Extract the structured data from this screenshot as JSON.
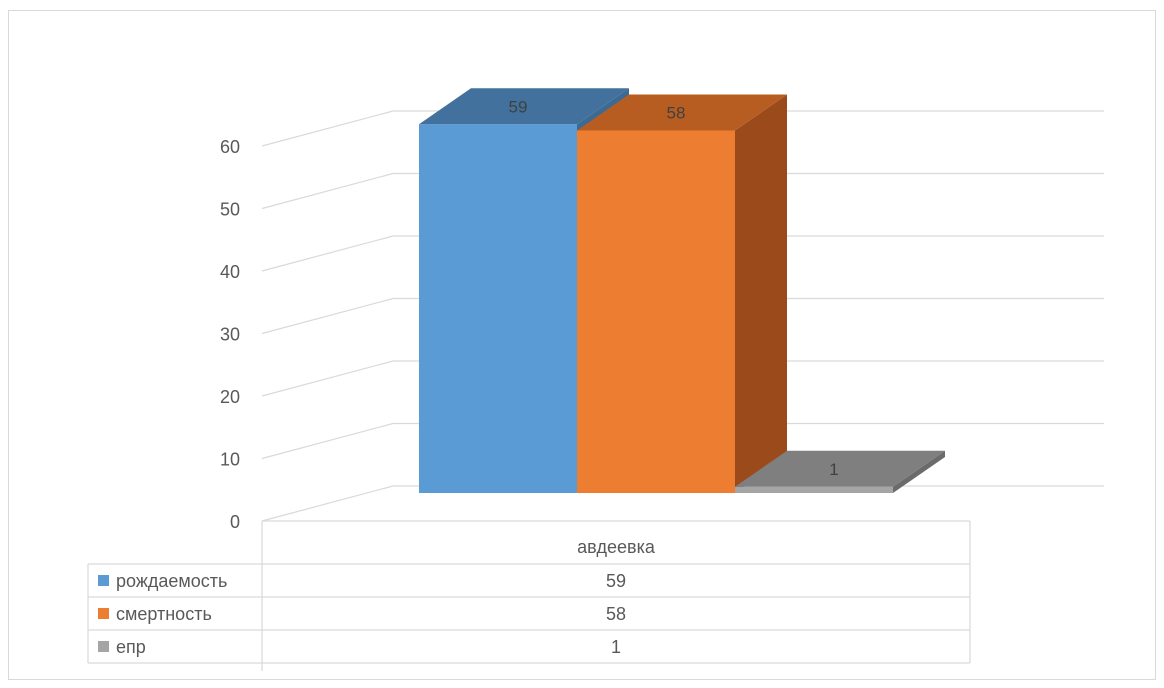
{
  "chart_data": {
    "type": "bar",
    "style": "3d-column-with-data-table",
    "categories": [
      "авдеевка"
    ],
    "series": [
      {
        "name": "рождаемость",
        "values": [
          59
        ],
        "color": "#5B9BD5",
        "top_color": "#41719C",
        "side_color": "#3B6A93"
      },
      {
        "name": "смертность",
        "values": [
          58
        ],
        "color": "#ED7D31",
        "top_color": "#B85D22",
        "side_color": "#9B4A1B"
      },
      {
        "name": "епр",
        "values": [
          1
        ],
        "color": "#A5A5A5",
        "top_color": "#7F7F7F",
        "side_color": "#6B6B6B"
      }
    ],
    "ylim": [
      0,
      60
    ],
    "ytick_labels": [
      "0",
      "10",
      "20",
      "30",
      "40",
      "50",
      "60"
    ],
    "grid": true,
    "legend": "data-table-below"
  }
}
